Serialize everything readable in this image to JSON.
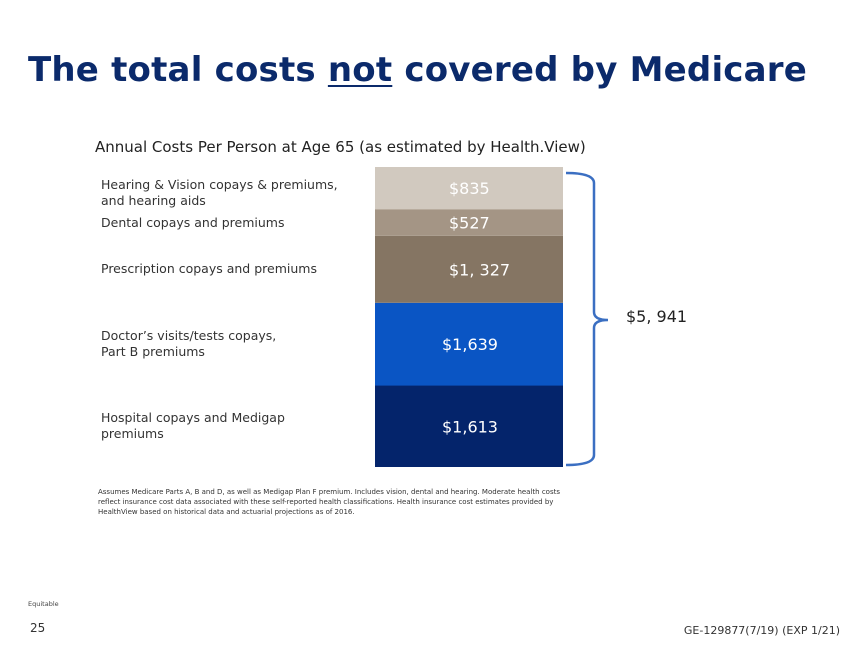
{
  "page": {
    "title_before": "The total costs ",
    "title_emphasis": "not",
    "title_after": " covered by Medicare",
    "footnote": "Assumes Medicare Parts A, B and D, as well as Medigap Plan F premium. Includes vision, dental and hearing. Moderate health costs reflect insurance cost data associated with these self-reported health classifications. Health insurance cost estimates provided by HealthView based on historical data and actuarial projections as of 2016.",
    "brand": "Equitable",
    "page_number": "25",
    "doc_code": "GE-129877(7/19) (EXP 1/21)"
  },
  "chart_data": {
    "type": "bar",
    "stacked": true,
    "title": "Annual Costs Per Person at Age 65 (as estimated by Health.View)",
    "categories": [
      "Hospital copays and Medigap premiums",
      "Doctor's visits/tests copays, Part B premiums",
      "Prescription copays and premiums",
      "Dental copays and premiums",
      "Hearing & Vision copays & premiums, and hearing aids"
    ],
    "values": [
      1613,
      1639,
      1327,
      527,
      835
    ],
    "value_labels": [
      "$1,613",
      "$1,639",
      "$1, 327",
      "$527",
      "$835"
    ],
    "segment_labels": [
      "Hospital copays and Medigap\npremiums",
      "Doctor’s visits/tests copays,\nPart B premiums",
      "Prescription copays and premiums",
      "Dental copays and premiums",
      "Hearing & Vision copays & premiums,\nand hearing aids"
    ],
    "colors": [
      "#04246b",
      "#0a55c4",
      "#857563",
      "#a49585",
      "#d1c9bf"
    ],
    "total": 5941,
    "total_label": "$5, 941",
    "bracket_color": "#3b6fc2"
  }
}
